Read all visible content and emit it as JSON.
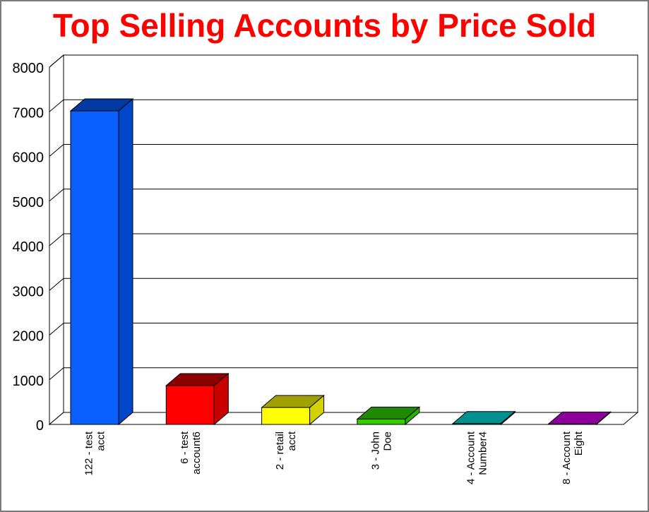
{
  "chart_data": {
    "type": "bar",
    "title": "Top Selling Accounts by Price Sold",
    "categories": [
      [
        "122 - test",
        "acct"
      ],
      [
        "6 - test",
        "account6"
      ],
      [
        "2 - retail",
        "acct"
      ],
      [
        "3 - John",
        "Doe"
      ],
      [
        "4 - Account",
        "Number4"
      ],
      [
        "8 - Account",
        "Eight"
      ]
    ],
    "values": [
      7020,
      870,
      380,
      120,
      20,
      10
    ],
    "colors": [
      {
        "front": "#0a5fff",
        "top": "#003a9e",
        "side": "#0046c8"
      },
      {
        "front": "#ff0000",
        "top": "#8c0000",
        "side": "#c80000"
      },
      {
        "front": "#ffff00",
        "top": "#a0a000",
        "side": "#d2d200"
      },
      {
        "front": "#33cc00",
        "top": "#1f8a00",
        "side": "#28b000"
      },
      {
        "front": "#00c0c0",
        "top": "#009090",
        "side": "#00a8a8"
      },
      {
        "front": "#9900aa",
        "top": "#8a0099",
        "side": "#7a0088"
      }
    ],
    "yticks": [
      0,
      1000,
      2000,
      3000,
      4000,
      5000,
      6000,
      7000,
      8000
    ],
    "ylim": [
      0,
      8000
    ],
    "xlabel": "",
    "ylabel": "",
    "grid": true,
    "legend": "none",
    "style": "3d"
  }
}
